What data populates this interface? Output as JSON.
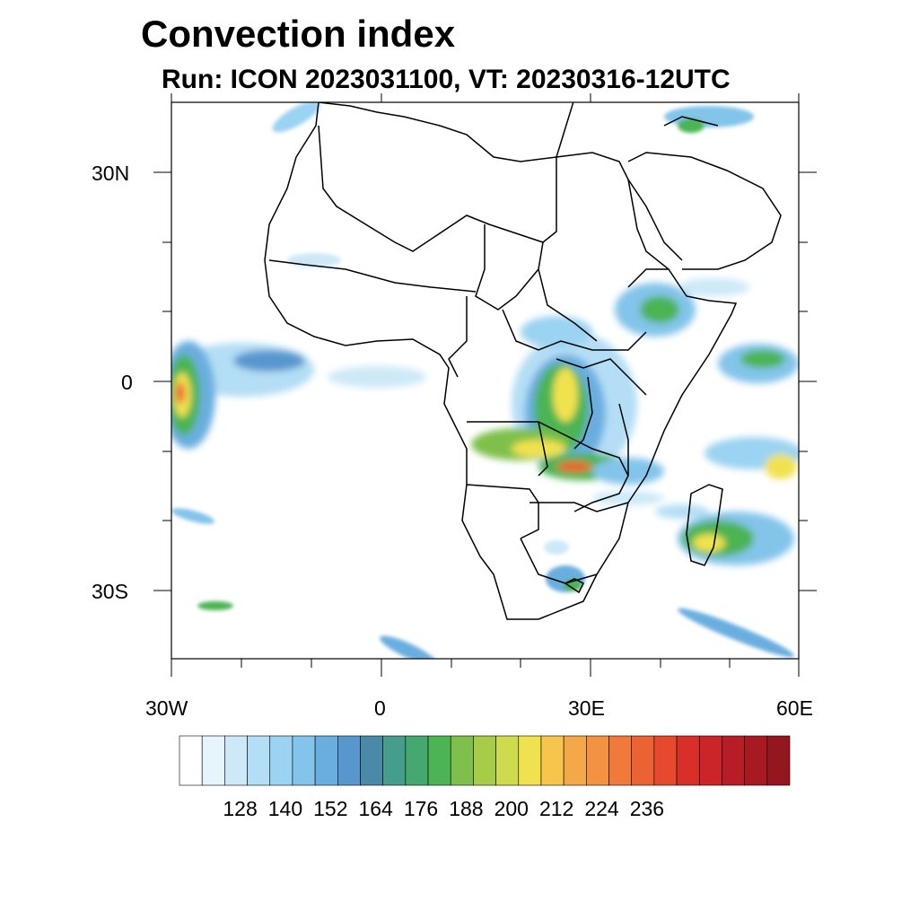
{
  "title": "Convection index",
  "subtitle": "Run: ICON 2023031100,  VT: 20230316-12UTC",
  "map": {
    "lon_range": [
      -30,
      60
    ],
    "lat_range": [
      -40,
      40
    ],
    "lon_ticks": [
      "30W",
      "0",
      "30E",
      "60E"
    ],
    "lat_ticks": [
      "30N",
      "0",
      "30S"
    ],
    "field": "Convection index"
  },
  "colorbar": {
    "labels": [
      "128",
      "140",
      "152",
      "164",
      "176",
      "188",
      "200",
      "212",
      "224",
      "236"
    ],
    "colors": [
      "#ffffff",
      "#e6f4fc",
      "#cde9f8",
      "#b4def5",
      "#9bd3f2",
      "#83c4ea",
      "#6aaee0",
      "#5797ce",
      "#4a8aa8",
      "#459e8a",
      "#45a86e",
      "#4cb452",
      "#7fc04c",
      "#a6cc48",
      "#cddb4d",
      "#f0e24f",
      "#f7c54b",
      "#f5a848",
      "#f39243",
      "#ef7a3c",
      "#ec6233",
      "#e7492d",
      "#d83029",
      "#cb2429",
      "#b81d26",
      "#a81a22",
      "#94161e"
    ]
  }
}
